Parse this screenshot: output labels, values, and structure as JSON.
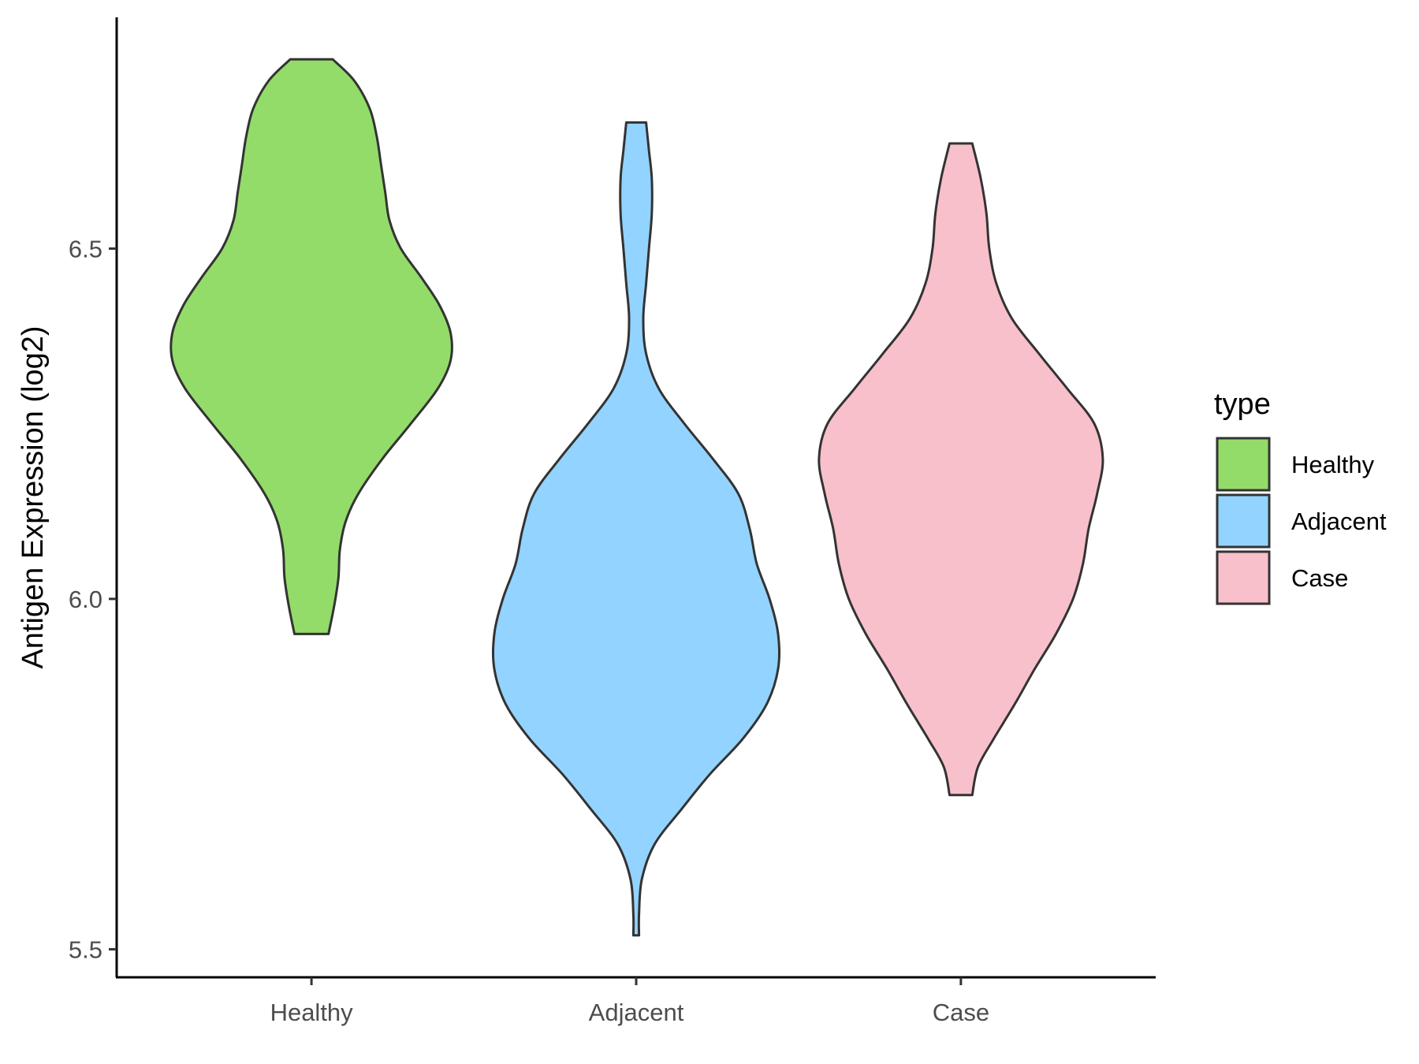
{
  "chart_data": {
    "type": "violin",
    "title": "",
    "xlabel": "",
    "ylabel": "Antigen Expression (log2)",
    "ylim": [
      5.46,
      6.83
    ],
    "yticks": [
      5.5,
      6.0,
      6.5
    ],
    "ytick_labels": [
      "5.5",
      "6.0",
      "6.5"
    ],
    "categories": [
      "Healthy",
      "Adjacent",
      "Case"
    ],
    "grid": false,
    "legend": {
      "title": "type",
      "position": "right",
      "entries": [
        {
          "label": "Healthy",
          "color": "#93DC6A"
        },
        {
          "label": "Adjacent",
          "color": "#93D3FF"
        },
        {
          "label": "Case",
          "color": "#F8C0CB"
        }
      ]
    },
    "series": [
      {
        "category": "Healthy",
        "color": "#93DC6A",
        "min": 5.95,
        "max": 6.77,
        "density": [
          [
            5.95,
            0.12
          ],
          [
            5.99,
            0.16
          ],
          [
            6.03,
            0.19
          ],
          [
            6.07,
            0.2
          ],
          [
            6.11,
            0.24
          ],
          [
            6.15,
            0.33
          ],
          [
            6.2,
            0.5
          ],
          [
            6.25,
            0.7
          ],
          [
            6.3,
            0.89
          ],
          [
            6.34,
            0.98
          ],
          [
            6.38,
            0.98
          ],
          [
            6.42,
            0.9
          ],
          [
            6.46,
            0.77
          ],
          [
            6.5,
            0.63
          ],
          [
            6.54,
            0.55
          ],
          [
            6.58,
            0.52
          ],
          [
            6.62,
            0.49
          ],
          [
            6.66,
            0.46
          ],
          [
            6.7,
            0.41
          ],
          [
            6.74,
            0.3
          ],
          [
            6.77,
            0.15
          ]
        ]
      },
      {
        "category": "Adjacent",
        "color": "#93D3FF",
        "min": 5.52,
        "max": 6.68,
        "density": [
          [
            5.52,
            0.02
          ],
          [
            5.55,
            0.02
          ],
          [
            5.6,
            0.04
          ],
          [
            5.65,
            0.13
          ],
          [
            5.7,
            0.32
          ],
          [
            5.75,
            0.52
          ],
          [
            5.8,
            0.75
          ],
          [
            5.85,
            0.92
          ],
          [
            5.9,
            1.0
          ],
          [
            5.95,
            1.0
          ],
          [
            6.0,
            0.94
          ],
          [
            6.05,
            0.85
          ],
          [
            6.1,
            0.8
          ],
          [
            6.15,
            0.72
          ],
          [
            6.2,
            0.54
          ],
          [
            6.25,
            0.34
          ],
          [
            6.3,
            0.16
          ],
          [
            6.35,
            0.07
          ],
          [
            6.4,
            0.05
          ],
          [
            6.45,
            0.07
          ],
          [
            6.5,
            0.09
          ],
          [
            6.55,
            0.11
          ],
          [
            6.6,
            0.11
          ],
          [
            6.64,
            0.09
          ],
          [
            6.68,
            0.07
          ]
        ]
      },
      {
        "category": "Case",
        "color": "#F8C0CB",
        "min": 5.72,
        "max": 6.65,
        "density": [
          [
            5.72,
            0.08
          ],
          [
            5.76,
            0.12
          ],
          [
            5.8,
            0.23
          ],
          [
            5.85,
            0.38
          ],
          [
            5.9,
            0.52
          ],
          [
            5.95,
            0.67
          ],
          [
            6.0,
            0.79
          ],
          [
            6.05,
            0.86
          ],
          [
            6.1,
            0.9
          ],
          [
            6.15,
            0.96
          ],
          [
            6.2,
            1.0
          ],
          [
            6.25,
            0.94
          ],
          [
            6.3,
            0.75
          ],
          [
            6.35,
            0.55
          ],
          [
            6.4,
            0.36
          ],
          [
            6.45,
            0.25
          ],
          [
            6.5,
            0.2
          ],
          [
            6.55,
            0.18
          ],
          [
            6.6,
            0.14
          ],
          [
            6.65,
            0.08
          ]
        ]
      }
    ]
  }
}
